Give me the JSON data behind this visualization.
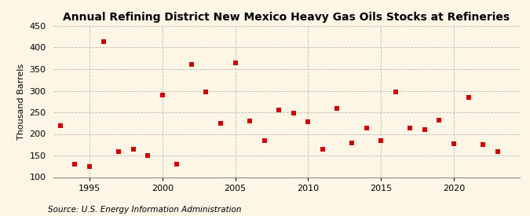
{
  "title": "Annual Refining District New Mexico Heavy Gas Oils Stocks at Refineries",
  "ylabel": "Thousand Barrels",
  "source": "Source: U.S. Energy Information Administration",
  "years": [
    1993,
    1994,
    1995,
    1996,
    1997,
    1998,
    1999,
    2000,
    2001,
    2002,
    2003,
    2004,
    2005,
    2006,
    2007,
    2008,
    2009,
    2010,
    2011,
    2012,
    2013,
    2014,
    2015,
    2016,
    2017,
    2018,
    2019,
    2020,
    2021,
    2022,
    2023
  ],
  "values": [
    220,
    130,
    125,
    413,
    160,
    165,
    150,
    290,
    130,
    360,
    298,
    225,
    365,
    230,
    185,
    255,
    248,
    228,
    165,
    260,
    180,
    213,
    185,
    297,
    213,
    210,
    232,
    178,
    285,
    175,
    160
  ],
  "marker_color": "#cc0000",
  "marker_size": 4,
  "background_color": "#fdf5e6",
  "grid_color": "#aaaaaa",
  "ylim": [
    100,
    450
  ],
  "yticks": [
    100,
    150,
    200,
    250,
    300,
    350,
    400,
    450
  ],
  "xlim": [
    1992.5,
    2024.5
  ],
  "xticks": [
    1995,
    2000,
    2005,
    2010,
    2015,
    2020
  ],
  "title_fontsize": 10,
  "label_fontsize": 8,
  "tick_fontsize": 8,
  "source_fontsize": 7.5
}
